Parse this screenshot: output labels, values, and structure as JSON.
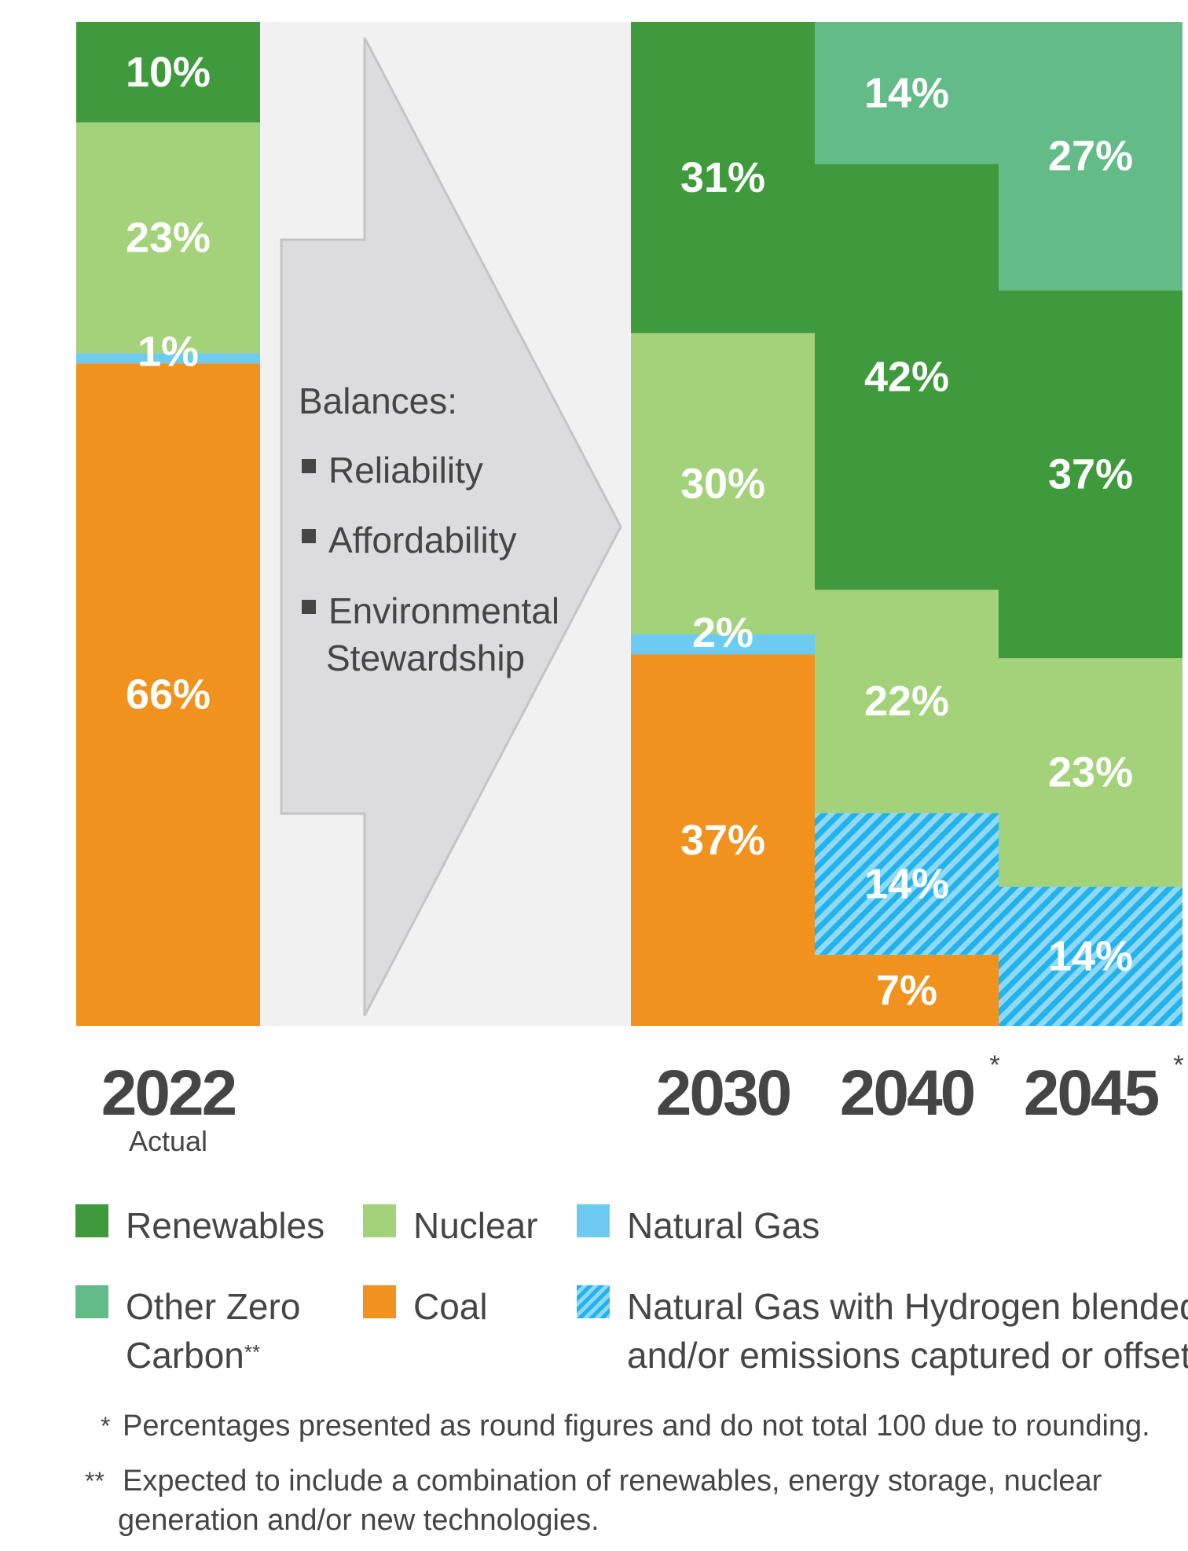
{
  "colors": {
    "renewables": "#3f9a3c",
    "nuclear": "#a3d27a",
    "natural_gas": "#6dcbf2",
    "other_zero_carbon": "#63bc88",
    "coal": "#f0921d",
    "natural_gas_hydrogen": "#23b2ea",
    "text": "#454545"
  },
  "chart_data": {
    "type": "bar",
    "stacked": true,
    "categories": [
      "2022",
      "2030",
      "2040",
      "2045"
    ],
    "category_sublabels": [
      "Actual",
      "",
      "",
      ""
    ],
    "category_markers": [
      "",
      "",
      "*",
      "*"
    ],
    "series": [
      {
        "name": "Coal",
        "key": "coal",
        "values": [
          66,
          37,
          7,
          0
        ]
      },
      {
        "name": "Natural Gas with Hydrogen blended and/or emissions captured or offset",
        "key": "natural_gas_hydrogen",
        "values": [
          0,
          0,
          14,
          14
        ]
      },
      {
        "name": "Natural Gas",
        "key": "natural_gas",
        "values": [
          1,
          2,
          0,
          0
        ]
      },
      {
        "name": "Nuclear",
        "key": "nuclear",
        "values": [
          23,
          30,
          22,
          23
        ]
      },
      {
        "name": "Renewables",
        "key": "renewables",
        "values": [
          10,
          31,
          42,
          37
        ]
      },
      {
        "name": "Other Zero Carbon",
        "key": "other_zero_carbon",
        "values": [
          0,
          0,
          14,
          27
        ]
      }
    ],
    "value_suffix": "%",
    "ylim": [
      0,
      100
    ],
    "grid": false,
    "legend_position": "bottom"
  },
  "balances": {
    "title": "Balances:",
    "items": [
      "Reliability",
      "Affordability",
      "Environmental",
      "Stewardship"
    ]
  },
  "legend": {
    "renewables": "Renewables",
    "nuclear": "Nuclear",
    "natural_gas": "Natural Gas",
    "other_zero_carbon_line1": "Other Zero",
    "other_zero_carbon_line2": "Carbon",
    "other_zero_carbon_marker": "**",
    "coal": "Coal",
    "natural_gas_hydrogen_line1": "Natural Gas with Hydrogen blended",
    "natural_gas_hydrogen_line2": "and/or emissions captured or offset"
  },
  "footnotes": {
    "note1_mark": "*",
    "note1_text": "Percentages presented as round figures and do not total 100 due to rounding.",
    "note2_mark": "**",
    "note2_line1": "Expected to include a combination of renewables, energy storage, nuclear",
    "note2_line2": "generation and/or new technologies."
  }
}
